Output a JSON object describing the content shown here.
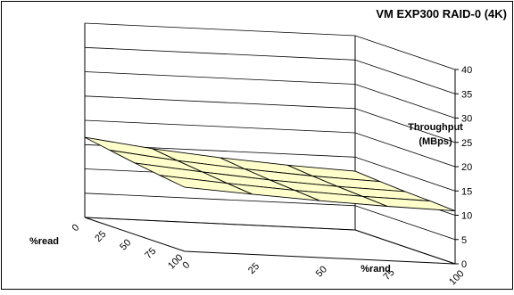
{
  "chart_data": {
    "type": "surface",
    "title": "VM EXP300 RAID-0 (4K)",
    "zlabel": [
      "Throughput",
      "(MBps)"
    ],
    "xlabel": "%rand",
    "ylabel": "%read",
    "x_ticks": [
      "0",
      "25",
      "50",
      "75",
      "100"
    ],
    "y_ticks": [
      "0",
      "25",
      "50",
      "75",
      "100"
    ],
    "z_ticks": [
      "0",
      "5",
      "10",
      "15",
      "20",
      "25",
      "30",
      "35",
      "40"
    ],
    "zlim": [
      0,
      40
    ],
    "grid": true,
    "legend": "none",
    "surface_fill": "#ffffcc",
    "rand_values": [
      0,
      25,
      50,
      75,
      100
    ],
    "read_values": [
      0,
      25,
      50,
      75,
      100
    ],
    "z_values": [
      [
        16.5,
        14.8,
        13.6,
        12.7,
        12.1
      ],
      [
        15.6,
        14.1,
        13.0,
        12.2,
        11.7
      ],
      [
        14.7,
        13.5,
        12.5,
        11.8,
        11.4
      ],
      [
        13.9,
        12.9,
        12.1,
        11.5,
        11.2
      ],
      [
        13.2,
        12.4,
        11.7,
        11.2,
        10.9
      ]
    ]
  }
}
